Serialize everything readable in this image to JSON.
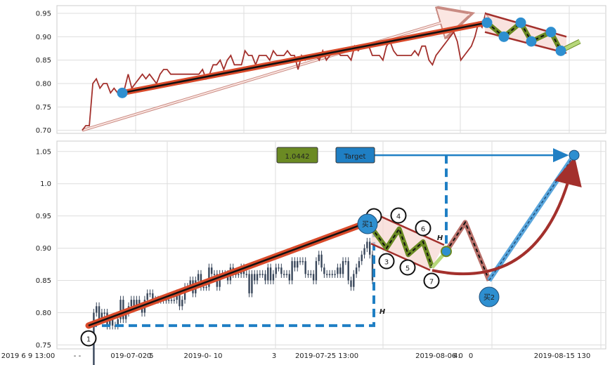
{
  "chart_data": [
    {
      "type": "line",
      "panel": "top",
      "yticks": [
        "0.70",
        "0.75",
        "0.80",
        "0.85",
        "0.90",
        "0.95"
      ],
      "ylim": [
        0.695,
        0.965
      ],
      "grid": true,
      "price": [
        0.7,
        0.71,
        0.71,
        0.8,
        0.81,
        0.79,
        0.8,
        0.8,
        0.78,
        0.79,
        0.78,
        0.78,
        0.79,
        0.82,
        0.79,
        0.8,
        0.81,
        0.82,
        0.81,
        0.82,
        0.81,
        0.8,
        0.82,
        0.83,
        0.83,
        0.82,
        0.82,
        0.82,
        0.82,
        0.82,
        0.82,
        0.82,
        0.82,
        0.82,
        0.83,
        0.81,
        0.82,
        0.84,
        0.84,
        0.85,
        0.83,
        0.85,
        0.86,
        0.84,
        0.84,
        0.84,
        0.87,
        0.86,
        0.86,
        0.84,
        0.86,
        0.86,
        0.86,
        0.85,
        0.87,
        0.86,
        0.86,
        0.86,
        0.87,
        0.86,
        0.86,
        0.83,
        0.86,
        0.85,
        0.86,
        0.86,
        0.86,
        0.85,
        0.87,
        0.85,
        0.86,
        0.87,
        0.87,
        0.86,
        0.86,
        0.86,
        0.85,
        0.88,
        0.87,
        0.88,
        0.88,
        0.88,
        0.86,
        0.86,
        0.86,
        0.85,
        0.88,
        0.89,
        0.87,
        0.86,
        0.86,
        0.86,
        0.86,
        0.86,
        0.87,
        0.86,
        0.88,
        0.88,
        0.85,
        0.84,
        0.86,
        0.87,
        0.88,
        0.89,
        0.9,
        0.91,
        0.89,
        0.85,
        0.86,
        0.87,
        0.88,
        0.9,
        0.93,
        0.92,
        0.95,
        0.94,
        0.92
      ],
      "zigzag": [
        0.93,
        0.9,
        0.93,
        0.89,
        0.91,
        0.87,
        0.89
      ],
      "trend_start": 0.78,
      "trend_end": 0.93,
      "pivot_start": 0.78
    },
    {
      "type": "candlestick",
      "panel": "bottom",
      "yticks": [
        "0.75",
        "0.80",
        "0.85",
        "0.90",
        "0.95",
        "1.0",
        "1.05"
      ],
      "ylim": [
        0.745,
        1.065
      ],
      "xticks": [
        "2019 6 9 13:00",
        "- -",
        "019-07-02 5",
        "0",
        "2019-0- 10",
        "3",
        "2019-07-25 13:00",
        "2019-08-06 0",
        "4:",
        "0",
        "2019-08-15 130"
      ],
      "grid": true,
      "labels": {
        "value_box": "1.0442",
        "target_box": "Target",
        "points": [
          "1",
          "3",
          "4",
          "5",
          "6",
          "7"
        ],
        "buy1": "买1",
        "buy2": "买2",
        "height_marker": "H"
      },
      "points": {
        "p1": 0.78,
        "buy1": 0.94,
        "p3": 0.9,
        "p4": 0.93,
        "p5": 0.89,
        "p6": 0.91,
        "p7": 0.87,
        "breakout": 0.895,
        "peak": 0.94,
        "buy2": 0.85,
        "target": 1.0442
      },
      "colors": {
        "trend": "#d94a2a",
        "zigzag": "#6b8a23",
        "marker": "#2e8fd0",
        "projection": "#1f7fc4",
        "curve": "#a3302c"
      }
    }
  ]
}
